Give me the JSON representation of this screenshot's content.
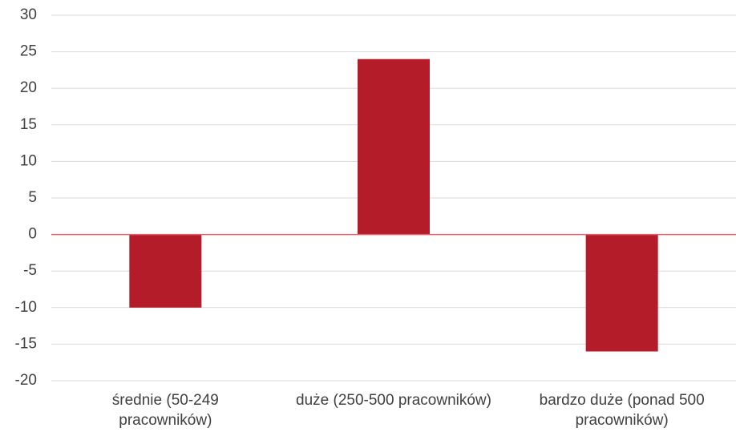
{
  "chart_data": {
    "type": "bar",
    "title": "",
    "xlabel": "",
    "ylabel": "",
    "categories": [
      [
        "średnie (50-249",
        "pracowników)"
      ],
      [
        "duże (250-500 pracowników)"
      ],
      [
        "bardzo duże (ponad 500",
        "pracowników)"
      ]
    ],
    "values": [
      -10,
      24,
      -16
    ],
    "ylim": [
      -20,
      30
    ],
    "yticks": [
      30,
      25,
      20,
      15,
      10,
      5,
      0,
      -5,
      -10,
      -15,
      -20
    ],
    "grid": true,
    "legend": "none",
    "colors": {
      "bar": "#b41c2a",
      "grid": "#d9d9d9",
      "zero_line": "#e06070",
      "text": "#404040"
    }
  }
}
